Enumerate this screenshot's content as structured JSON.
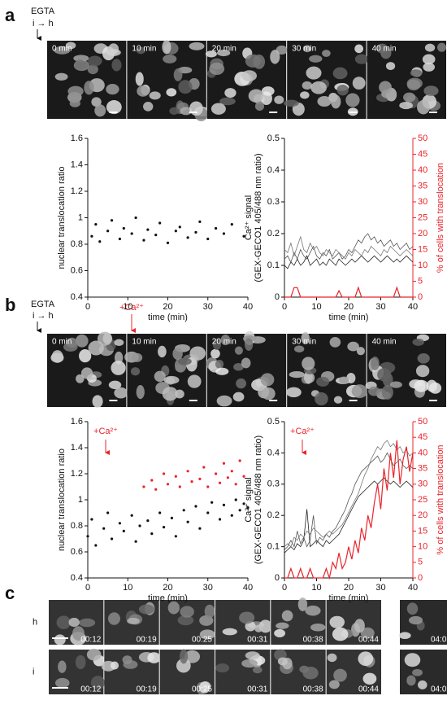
{
  "panels": [
    {
      "label": "a",
      "treatment": "EGTA",
      "direction": "i → h",
      "frames": [
        "0 min",
        "10 min",
        "20 min",
        "30 min",
        "40 min"
      ]
    },
    {
      "label": "b",
      "treatment": "EGTA",
      "direction": "i → h",
      "addition": "+Ca²⁺",
      "frames": [
        "0 min",
        "10 min",
        "20 min",
        "30 min",
        "40 min"
      ]
    },
    {
      "label": "c",
      "rows": [
        "h",
        "i"
      ],
      "timestamps": [
        "00:12",
        "00:19",
        "00:25",
        "00:31",
        "00:38",
        "00:44"
      ],
      "late_timestamp": "04:0"
    }
  ],
  "chart_data": [
    {
      "type": "scatter",
      "xlabel": "time (min)",
      "ylabel": [
        "nuclear translocation ratio"
      ],
      "xlim": [
        0,
        40
      ],
      "xticks": [
        0,
        10,
        20,
        30,
        40
      ],
      "ylim": [
        0.4,
        1.6
      ],
      "yticks": [
        0.4,
        0.6,
        0.8,
        1,
        1.2,
        1.4,
        1.6
      ],
      "series": [
        {
          "color": "#111111",
          "x": [
            1,
            2,
            3,
            5,
            6,
            8,
            9,
            11,
            12,
            14,
            15,
            17,
            18,
            20,
            22,
            23,
            25,
            27,
            28,
            30,
            32,
            34,
            36,
            39
          ],
          "values": [
            0.86,
            0.95,
            0.82,
            0.9,
            0.98,
            0.84,
            0.92,
            0.88,
            1.0,
            0.83,
            0.91,
            0.87,
            0.96,
            0.81,
            0.9,
            0.93,
            0.85,
            0.89,
            0.97,
            0.84,
            0.92,
            0.88,
            0.95,
            0.86
          ]
        }
      ]
    },
    {
      "type": "line",
      "xlabel": "time (min)",
      "ylabel": [
        "Ca²⁺ signal",
        "(GEX-GECO1 405/488 nm ratio)"
      ],
      "y2label": "% of cells with translocation",
      "xlim": [
        0,
        40
      ],
      "xticks": [
        0,
        10,
        20,
        30,
        40
      ],
      "ylim": [
        0,
        0.5
      ],
      "yticks": [
        0,
        0.1,
        0.2,
        0.3,
        0.4,
        0.5
      ],
      "y2lim": [
        0,
        50
      ],
      "y2ticks": [
        0,
        5,
        10,
        15,
        20,
        25,
        30,
        35,
        40,
        45,
        50
      ],
      "x": [
        0,
        1,
        2,
        3,
        4,
        5,
        6,
        7,
        8,
        9,
        10,
        11,
        12,
        13,
        14,
        15,
        16,
        17,
        18,
        19,
        20,
        21,
        22,
        23,
        24,
        25,
        26,
        27,
        28,
        29,
        30,
        31,
        32,
        33,
        34,
        35,
        36,
        37,
        38,
        39,
        40
      ],
      "series": [
        {
          "color": "#555555",
          "values": [
            0.12,
            0.13,
            0.11,
            0.14,
            0.12,
            0.15,
            0.13,
            0.12,
            0.14,
            0.16,
            0.13,
            0.12,
            0.14,
            0.13,
            0.15,
            0.12,
            0.13,
            0.14,
            0.12,
            0.13,
            0.15,
            0.14,
            0.16,
            0.18,
            0.17,
            0.19,
            0.2,
            0.18,
            0.19,
            0.17,
            0.18,
            0.16,
            0.17,
            0.18,
            0.16,
            0.17,
            0.15,
            0.16,
            0.17,
            0.15,
            0.16
          ]
        },
        {
          "color": "#222222",
          "values": [
            0.1,
            0.09,
            0.11,
            0.1,
            0.12,
            0.1,
            0.11,
            0.13,
            0.1,
            0.11,
            0.12,
            0.1,
            0.11,
            0.1,
            0.12,
            0.11,
            0.1,
            0.12,
            0.11,
            0.1,
            0.11,
            0.12,
            0.11,
            0.12,
            0.13,
            0.12,
            0.11,
            0.12,
            0.13,
            0.12,
            0.11,
            0.12,
            0.13,
            0.12,
            0.11,
            0.12,
            0.11,
            0.12,
            0.13,
            0.12,
            0.11
          ]
        },
        {
          "color": "#777777",
          "values": [
            0.15,
            0.14,
            0.17,
            0.13,
            0.16,
            0.19,
            0.15,
            0.14,
            0.17,
            0.15,
            0.16,
            0.14,
            0.13,
            0.15,
            0.14,
            0.13,
            0.15,
            0.14,
            0.13,
            0.12,
            0.14,
            0.13,
            0.15,
            0.14,
            0.13,
            0.15,
            0.14,
            0.16,
            0.15,
            0.14,
            0.13,
            0.15,
            0.14,
            0.16,
            0.15,
            0.14,
            0.13,
            0.14,
            0.15,
            0.14,
            0.13
          ]
        },
        {
          "color": "#e8242b",
          "axis": "y2",
          "values": [
            0,
            0,
            0,
            3,
            3,
            0,
            0,
            0,
            0,
            0,
            0,
            0,
            0,
            0,
            0,
            0,
            0,
            2,
            0,
            0,
            0,
            0,
            0,
            3,
            0,
            0,
            0,
            0,
            0,
            0,
            0,
            0,
            0,
            0,
            0,
            3,
            0,
            0,
            0,
            0,
            0
          ]
        }
      ]
    },
    {
      "type": "scatter",
      "xlabel": "time (min)",
      "ylabel": [
        "nuclear translocation ratio"
      ],
      "annotation": "+Ca²⁺",
      "xlim": [
        0,
        40
      ],
      "xticks": [
        0,
        10,
        20,
        30,
        40
      ],
      "ylim": [
        0.4,
        1.6
      ],
      "yticks": [
        0.4,
        0.6,
        0.8,
        1,
        1.2,
        1.4,
        1.6
      ],
      "series": [
        {
          "color": "#111111",
          "x": [
            0,
            1,
            2,
            4,
            5,
            6,
            8,
            9,
            11,
            12,
            13,
            15,
            16,
            18,
            19,
            21,
            22,
            24,
            25,
            27,
            28,
            30,
            31,
            33,
            34,
            36,
            37,
            38,
            39,
            40
          ],
          "values": [
            0.72,
            0.85,
            0.65,
            0.78,
            0.9,
            0.7,
            0.82,
            0.76,
            0.88,
            0.68,
            0.8,
            0.84,
            0.74,
            0.9,
            0.79,
            0.86,
            0.72,
            0.92,
            0.83,
            0.95,
            0.78,
            0.9,
            0.98,
            0.85,
            0.96,
            0.88,
            1.0,
            0.92,
            0.97,
            0.94
          ]
        },
        {
          "color": "#e8242b",
          "x": [
            14,
            16,
            17,
            19,
            20,
            22,
            23,
            25,
            26,
            28,
            29,
            30,
            32,
            33,
            34,
            35,
            36,
            37,
            38,
            39
          ],
          "values": [
            1.1,
            1.15,
            1.08,
            1.2,
            1.12,
            1.18,
            1.1,
            1.22,
            1.14,
            1.16,
            1.25,
            1.1,
            1.2,
            1.13,
            1.28,
            1.17,
            1.22,
            1.12,
            1.3,
            1.18
          ]
        }
      ]
    },
    {
      "type": "line",
      "xlabel": "time (min)",
      "ylabel": [
        "Ca²⁺ signal",
        "(GEX-GECO1 405/488 nm ratio)"
      ],
      "y2label": "% of cells with translocation",
      "annotation": "+Ca²⁺",
      "xlim": [
        0,
        40
      ],
      "xticks": [
        0,
        10,
        20,
        30,
        40
      ],
      "ylim": [
        0,
        0.5
      ],
      "yticks": [
        0,
        0.1,
        0.2,
        0.3,
        0.4,
        0.5
      ],
      "y2lim": [
        0,
        50
      ],
      "y2ticks": [
        0,
        5,
        10,
        15,
        20,
        25,
        30,
        35,
        40,
        45,
        50
      ],
      "x": [
        0,
        1,
        2,
        3,
        4,
        5,
        6,
        7,
        8,
        9,
        10,
        11,
        12,
        13,
        14,
        15,
        16,
        17,
        18,
        19,
        20,
        21,
        22,
        23,
        24,
        25,
        26,
        27,
        28,
        29,
        30,
        31,
        32,
        33,
        34,
        35,
        36,
        37,
        38,
        39,
        40
      ],
      "series": [
        {
          "color": "#555555",
          "values": [
            0.09,
            0.1,
            0.12,
            0.1,
            0.15,
            0.11,
            0.13,
            0.1,
            0.12,
            0.2,
            0.11,
            0.13,
            0.12,
            0.14,
            0.13,
            0.15,
            0.16,
            0.18,
            0.2,
            0.22,
            0.25,
            0.27,
            0.3,
            0.32,
            0.34,
            0.35,
            0.36,
            0.37,
            0.38,
            0.39,
            0.37,
            0.38,
            0.4,
            0.38,
            0.36,
            0.37,
            0.38,
            0.36,
            0.35,
            0.36,
            0.35
          ]
        },
        {
          "color": "#222222",
          "values": [
            0.08,
            0.09,
            0.1,
            0.09,
            0.11,
            0.1,
            0.12,
            0.22,
            0.1,
            0.11,
            0.12,
            0.11,
            0.1,
            0.12,
            0.11,
            0.12,
            0.13,
            0.14,
            0.16,
            0.18,
            0.2,
            0.22,
            0.24,
            0.26,
            0.27,
            0.28,
            0.29,
            0.3,
            0.31,
            0.3,
            0.31,
            0.32,
            0.31,
            0.3,
            0.31,
            0.3,
            0.29,
            0.3,
            0.31,
            0.3,
            0.29
          ]
        },
        {
          "color": "#777777",
          "values": [
            0.1,
            0.11,
            0.1,
            0.13,
            0.12,
            0.14,
            0.13,
            0.15,
            0.14,
            0.16,
            0.15,
            0.14,
            0.13,
            0.14,
            0.15,
            0.14,
            0.15,
            0.16,
            0.17,
            0.19,
            0.21,
            0.23,
            0.25,
            0.27,
            0.3,
            0.33,
            0.35,
            0.38,
            0.4,
            0.42,
            0.41,
            0.43,
            0.44,
            0.42,
            0.43,
            0.41,
            0.42,
            0.4,
            0.41,
            0.39,
            0.4
          ]
        },
        {
          "color": "#e8242b",
          "axis": "y2",
          "values": [
            0,
            0,
            3,
            0,
            0,
            3,
            0,
            0,
            3,
            0,
            0,
            0,
            0,
            3,
            0,
            5,
            3,
            8,
            3,
            5,
            10,
            6,
            12,
            8,
            16,
            12,
            20,
            16,
            24,
            30,
            22,
            35,
            28,
            40,
            32,
            44,
            30,
            38,
            42,
            34,
            40
          ]
        }
      ]
    }
  ]
}
